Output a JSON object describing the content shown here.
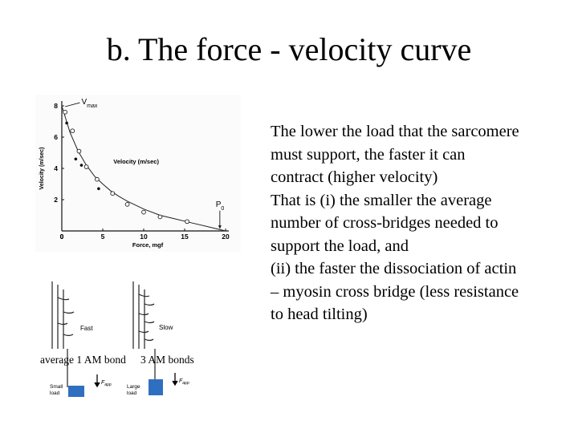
{
  "slide": {
    "title": "b. The force - velocity curve",
    "body_lines": [
      "The lower the load that the sarcomere",
      "must support, the faster it can",
      "contract (higher velocity)",
      "That is (i) the smaller the average",
      "number of cross-bridges needed to",
      "support the load, and",
      "(ii) the faster the dissociation of actin",
      "– myosin cross bridge (less resistance",
      "to head tilting)"
    ]
  },
  "chart_data": {
    "type": "scatter",
    "title": "",
    "xlabel": "Force, mgf",
    "ylabel": "Velocity (m/sec)",
    "xlim": [
      0,
      20
    ],
    "ylim": [
      0,
      8
    ],
    "xticks": [
      "0",
      "5",
      "10",
      "15",
      "20"
    ],
    "yticks": [
      "2",
      "4",
      "6",
      "8"
    ],
    "series": [
      {
        "name": "Velocity (m/sec)",
        "points": [
          {
            "x": 0.4,
            "y": 7.6
          },
          {
            "x": 1.3,
            "y": 6.4
          },
          {
            "x": 2.1,
            "y": 5.1
          },
          {
            "x": 3.0,
            "y": 4.1
          },
          {
            "x": 4.3,
            "y": 3.3
          },
          {
            "x": 6.2,
            "y": 2.4
          },
          {
            "x": 8.0,
            "y": 1.7
          },
          {
            "x": 10.0,
            "y": 1.2
          },
          {
            "x": 12.0,
            "y": 0.9
          },
          {
            "x": 15.3,
            "y": 0.6
          }
        ]
      },
      {
        "name": "",
        "points": [
          {
            "x": 0.6,
            "y": 6.9
          },
          {
            "x": 1.7,
            "y": 4.6
          },
          {
            "x": 2.4,
            "y": 4.2
          },
          {
            "x": 4.5,
            "y": 2.7
          }
        ]
      }
    ],
    "curve": [
      {
        "x": 0,
        "y": 8.0
      },
      {
        "x": 1,
        "y": 6.3
      },
      {
        "x": 2,
        "y": 5.1
      },
      {
        "x": 3,
        "y": 4.2
      },
      {
        "x": 4,
        "y": 3.5
      },
      {
        "x": 5,
        "y": 3.0
      },
      {
        "x": 6,
        "y": 2.55
      },
      {
        "x": 7,
        "y": 2.2
      },
      {
        "x": 8,
        "y": 1.9
      },
      {
        "x": 10,
        "y": 1.4
      },
      {
        "x": 12,
        "y": 1.0
      },
      {
        "x": 14,
        "y": 0.75
      },
      {
        "x": 16,
        "y": 0.5
      },
      {
        "x": 18,
        "y": 0.25
      },
      {
        "x": 20,
        "y": 0.0
      }
    ],
    "annotations": {
      "vmax": "V",
      "vmax_sub": "max",
      "p0": "P",
      "p0_sub": "0"
    }
  },
  "diagram": {
    "fast_label": "Fast",
    "slow_label": "Slow",
    "left_caption": "average 1 AM bond",
    "right_caption": "3 AM bonds",
    "small_load": [
      "Small",
      "load"
    ],
    "large_load": [
      "Large",
      "load"
    ],
    "force_label": "F",
    "force_sub": "app",
    "load_color": "#2f6fbf"
  }
}
